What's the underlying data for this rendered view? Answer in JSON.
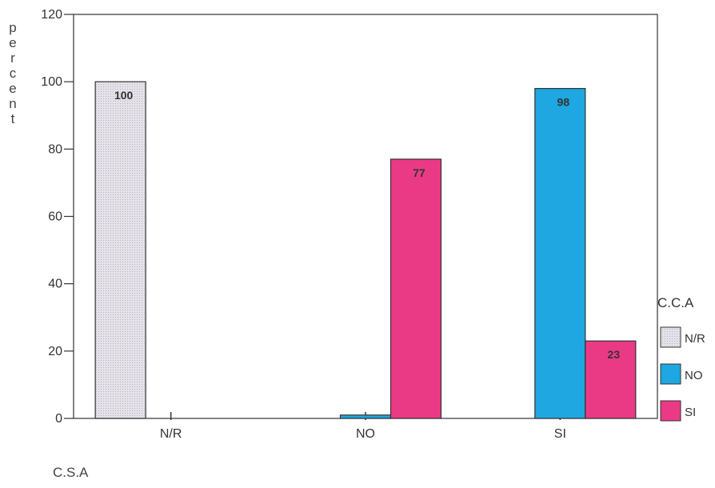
{
  "chart_data": {
    "type": "bar",
    "categories": [
      "N/R",
      "NO",
      "SI"
    ],
    "series": [
      {
        "name": "N/R",
        "color": "#dcdae0",
        "values": [
          100,
          0,
          0
        ]
      },
      {
        "name": "NO",
        "color": "#1ea7e0",
        "values": [
          0,
          1,
          98
        ]
      },
      {
        "name": "SI",
        "color": "#ea3a86",
        "values": [
          0,
          77,
          23
        ]
      }
    ],
    "bar_labels": [
      {
        "category": "N/R",
        "series": "N/R",
        "value": 100,
        "text": "100"
      },
      {
        "category": "NO",
        "series": "SI",
        "value": 77,
        "text": "77"
      },
      {
        "category": "SI",
        "series": "NO",
        "value": 98,
        "text": "98"
      },
      {
        "category": "SI",
        "series": "SI",
        "value": 23,
        "text": "23"
      }
    ],
    "ylabel": "percent",
    "xlabel": "C.S.A",
    "legend_title": "C.C.A",
    "legend_position": "right",
    "ylim": [
      0,
      120
    ],
    "yticks": [
      0,
      20,
      40,
      60,
      80,
      100,
      120
    ],
    "grid": false
  }
}
